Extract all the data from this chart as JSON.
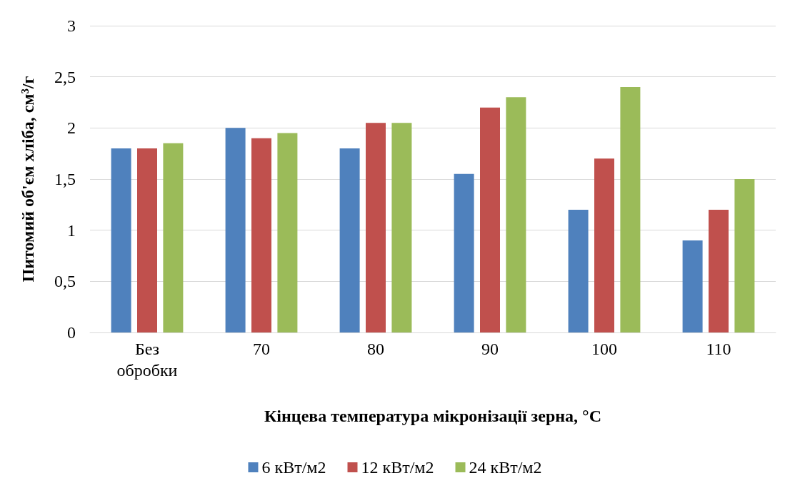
{
  "chart_data": {
    "type": "bar",
    "xlabel": "Кінцева температура мікронізації зерна, °C",
    "ylabel": "Питомий об'єм хліба, см³/г",
    "categories": [
      "Без обробки",
      "70",
      "80",
      "90",
      "100",
      "110"
    ],
    "series": [
      {
        "name": "6 кВт/м2",
        "color": "#4f81bd",
        "values": [
          1.8,
          2.0,
          1.8,
          1.55,
          1.2,
          0.9
        ]
      },
      {
        "name": "12 кВт/м2",
        "color": "#c0504d",
        "values": [
          1.8,
          1.9,
          2.05,
          2.2,
          1.7,
          1.2
        ]
      },
      {
        "name": "24 кВт/м2",
        "color": "#9bbb59",
        "values": [
          1.85,
          1.95,
          2.05,
          2.3,
          2.4,
          1.5
        ]
      }
    ],
    "ylim": [
      0,
      3
    ],
    "yticks": [
      0,
      {
        "value": 0.5,
        "label": "0,5"
      },
      1,
      {
        "value": 1.5,
        "label": "1,5"
      },
      2,
      {
        "value": 2.5,
        "label": "2,5"
      },
      3
    ],
    "grid": "y",
    "legend": "bottom"
  }
}
